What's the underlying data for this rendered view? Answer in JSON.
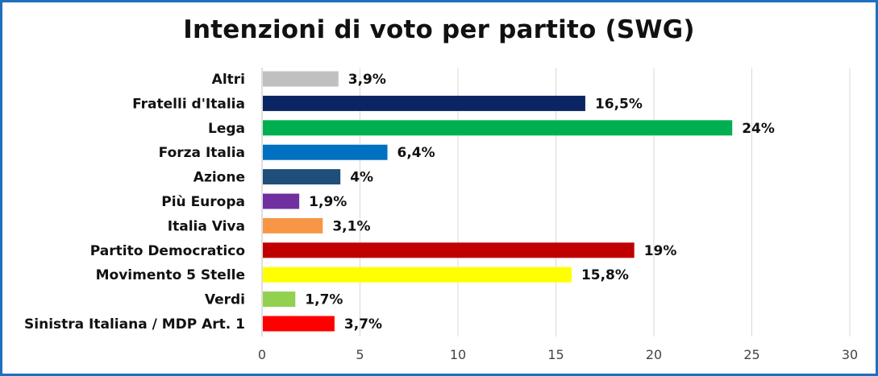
{
  "chart_data": {
    "type": "bar",
    "orientation": "horizontal",
    "title": "Intenzioni di voto per partito (SWG)",
    "categories": [
      "Altri",
      "Fratelli d'Italia",
      "Lega",
      "Forza Italia",
      "Azione",
      "Più Europa",
      "Italia Viva",
      "Partito Democratico",
      "Movimento 5 Stelle",
      "Verdi",
      "Sinistra Italiana / MDP Art. 1"
    ],
    "values": [
      3.9,
      16.5,
      24,
      6.4,
      4,
      1.9,
      3.1,
      19,
      15.8,
      1.7,
      3.7
    ],
    "value_labels": [
      "3,9%",
      "16,5%",
      "24%",
      "6,4%",
      "4%",
      "1,9%",
      "3,1%",
      "19%",
      "15,8%",
      "1,7%",
      "3,7%"
    ],
    "colors": [
      "#c0c0c0",
      "#0b2463",
      "#00b050",
      "#0070c0",
      "#1f4e79",
      "#7030a0",
      "#f79646",
      "#c00000",
      "#ffff00",
      "#92d050",
      "#ff0000"
    ],
    "xlim": [
      0,
      30
    ],
    "xticks": [
      "0",
      "5",
      "10",
      "15",
      "20",
      "25",
      "30"
    ],
    "xtick_values": [
      0,
      5,
      10,
      15,
      20,
      25,
      30
    ],
    "grid": true,
    "legend": "none"
  }
}
